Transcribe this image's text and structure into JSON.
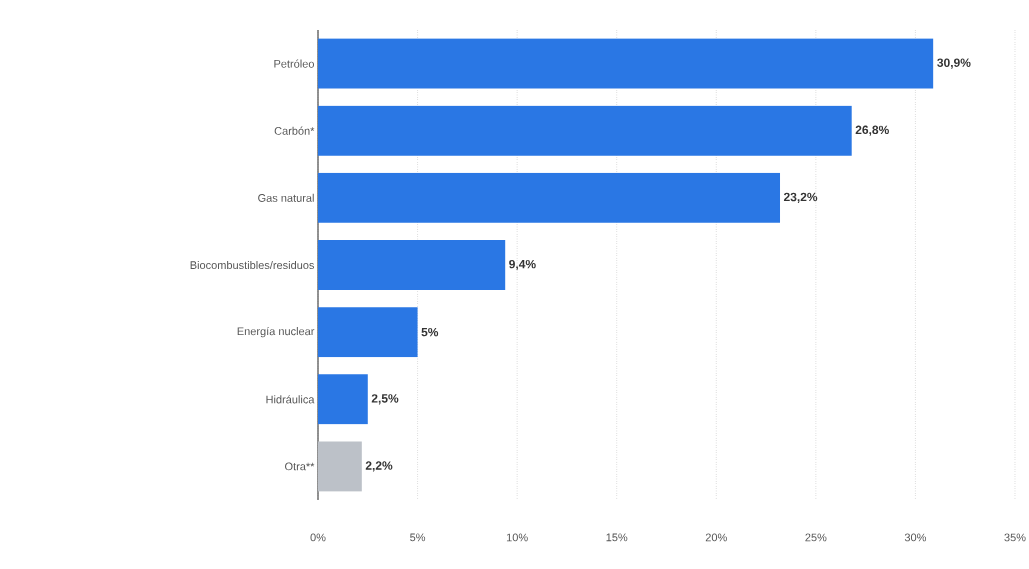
{
  "chart_data": {
    "type": "bar",
    "orientation": "horizontal",
    "categories": [
      "Petróleo",
      "Carbón*",
      "Gas natural",
      "Biocombustibles/residuos",
      "Energía nuclear",
      "Hidráulica",
      "Otra**"
    ],
    "values": [
      30.9,
      26.8,
      23.2,
      9.4,
      5,
      2.5,
      2.2
    ],
    "colors": [
      "#2a77e4",
      "#2a77e4",
      "#2a77e4",
      "#2a77e4",
      "#2a77e4",
      "#2a77e4",
      "#bcc1c8"
    ],
    "value_labels": [
      "30,9%",
      "26,8%",
      "23,2%",
      "9,4%",
      "5%",
      "2,5%",
      "2,2%"
    ],
    "xlim": [
      0,
      35
    ],
    "xticks": [
      {
        "value": 0,
        "label": "0%"
      },
      {
        "value": 5,
        "label": "5%"
      },
      {
        "value": 10,
        "label": "10%"
      },
      {
        "value": 15,
        "label": "15%"
      },
      {
        "value": 20,
        "label": "20%"
      },
      {
        "value": 25,
        "label": "25%"
      },
      {
        "value": 30,
        "label": "30%"
      },
      {
        "value": 35,
        "label": "35%"
      }
    ],
    "grid": "x"
  }
}
